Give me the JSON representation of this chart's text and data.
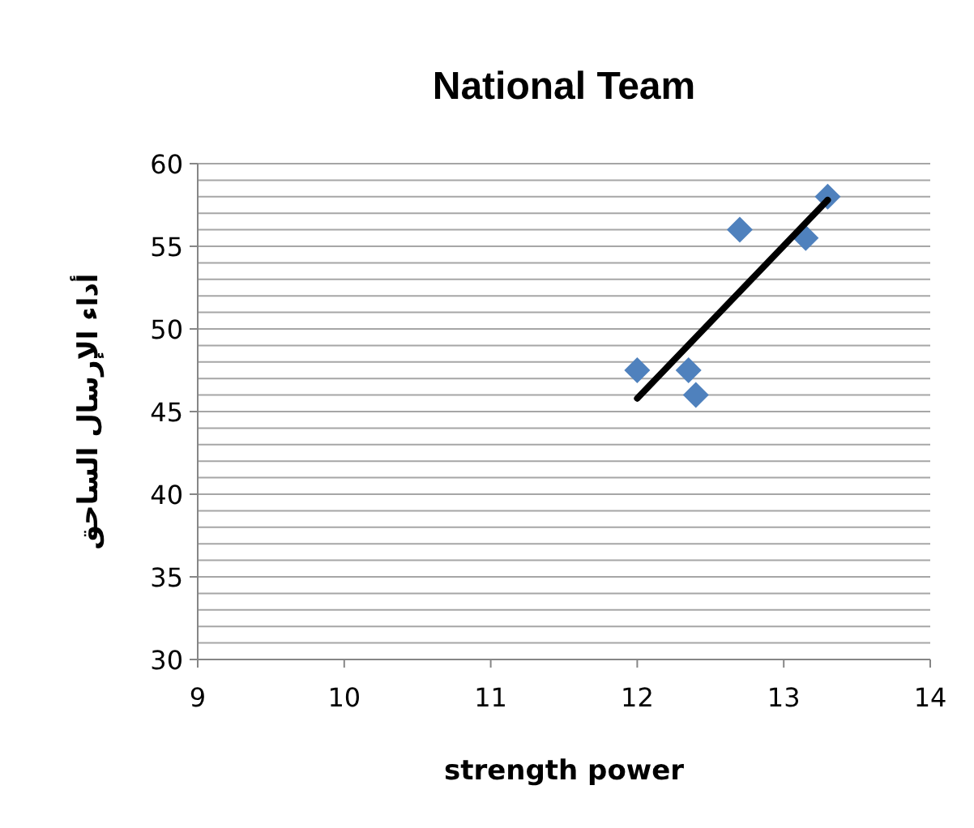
{
  "chart_data": {
    "type": "scatter",
    "title": "National Team",
    "xlabel": "strength power",
    "ylabel": "أداء الإرسال الساحق",
    "grid": "y",
    "xlim": [
      9,
      14
    ],
    "xticks": [
      9,
      10,
      11,
      12,
      13,
      14
    ],
    "ylim": [
      30,
      60
    ],
    "yticks": [
      30,
      {
        "value": 31,
        "label": null
      },
      {
        "value": 32,
        "label": null
      },
      {
        "value": 33,
        "label": null
      },
      {
        "value": 34,
        "label": null
      },
      35,
      {
        "value": 36,
        "label": null
      },
      {
        "value": 37,
        "label": null
      },
      {
        "value": 38,
        "label": null
      },
      {
        "value": 39,
        "label": null
      },
      40,
      {
        "value": 41,
        "label": null
      },
      {
        "value": 42,
        "label": null
      },
      {
        "value": 43,
        "label": null
      },
      {
        "value": 44,
        "label": null
      },
      45,
      {
        "value": 46,
        "label": null
      },
      {
        "value": 47,
        "label": null
      },
      {
        "value": 48,
        "label": null
      },
      {
        "value": 49,
        "label": null
      },
      50,
      {
        "value": 51,
        "label": null
      },
      {
        "value": 52,
        "label": null
      },
      {
        "value": 53,
        "label": null
      },
      {
        "value": 54,
        "label": null
      },
      55,
      {
        "value": 56,
        "label": null
      },
      {
        "value": 57,
        "label": null
      },
      {
        "value": 58,
        "label": null
      },
      {
        "value": 59,
        "label": null
      },
      60
    ],
    "series": [
      {
        "color": "#4f81bd",
        "marker": "diamond",
        "x": [
          12.0,
          12.35,
          12.4,
          12.7,
          13.15,
          13.3
        ],
        "values": [
          47.5,
          47.5,
          46,
          56,
          55.5,
          58
        ]
      },
      {
        "type": "line",
        "marker": "none",
        "color": "#000000",
        "x": [
          12.0,
          13.3
        ],
        "values": [
          45.8,
          57.8
        ]
      }
    ]
  }
}
